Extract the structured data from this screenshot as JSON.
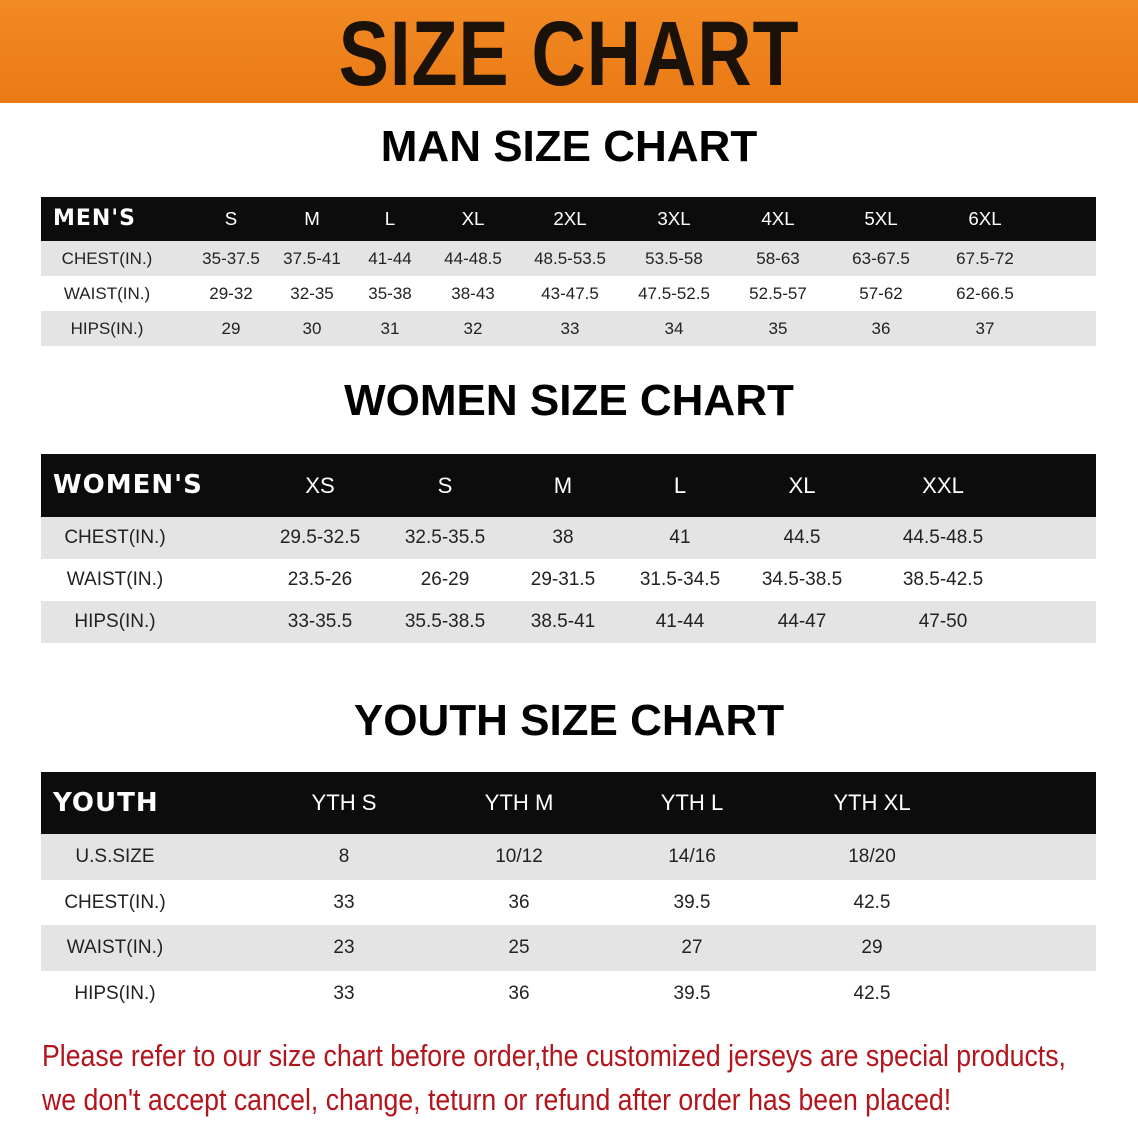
{
  "banner": {
    "title": "SIZE CHART"
  },
  "colors": {
    "banner": "#ef8420",
    "header_bg": "#0c0c0c",
    "row_alt": "#e4e4e4",
    "notice": "#b3151d"
  },
  "men": {
    "title": "MAN SIZE CHART",
    "header_label": "MEN'S",
    "sizes": [
      "S",
      "M",
      "L",
      "XL",
      "2XL",
      "3XL",
      "4XL",
      "5XL",
      "6XL"
    ],
    "rows": [
      {
        "label": "CHEST(IN.)",
        "values": [
          "35-37.5",
          "37.5-41",
          "41-44",
          "44-48.5",
          "48.5-53.5",
          "53.5-58",
          "58-63",
          "63-67.5",
          "67.5-72"
        ]
      },
      {
        "label": "WAIST(IN.)",
        "values": [
          "29-32",
          "32-35",
          "35-38",
          "38-43",
          "43-47.5",
          "47.5-52.5",
          "52.5-57",
          "57-62",
          "62-66.5"
        ]
      },
      {
        "label": "HIPS(IN.)",
        "values": [
          "29",
          "30",
          "31",
          "32",
          "33",
          "34",
          "35",
          "36",
          "37"
        ]
      }
    ]
  },
  "women": {
    "title": "WOMEN SIZE CHART",
    "header_label": "WOMEN'S",
    "sizes": [
      "XS",
      "S",
      "M",
      "L",
      "XL",
      "XXL"
    ],
    "rows": [
      {
        "label": "CHEST(IN.)",
        "values": [
          "29.5-32.5",
          "32.5-35.5",
          "38",
          "41",
          "44.5",
          "44.5-48.5"
        ]
      },
      {
        "label": "WAIST(IN.)",
        "values": [
          "23.5-26",
          "26-29",
          "29-31.5",
          "31.5-34.5",
          "34.5-38.5",
          "38.5-42.5"
        ]
      },
      {
        "label": "HIPS(IN.)",
        "values": [
          "33-35.5",
          "35.5-38.5",
          "38.5-41",
          "41-44",
          "44-47",
          "47-50"
        ]
      }
    ]
  },
  "youth": {
    "title": "YOUTH SIZE CHART",
    "header_label": "YOUTH",
    "sizes": [
      "YTH S",
      "YTH M",
      "YTH L",
      "YTH XL"
    ],
    "rows": [
      {
        "label": "U.S.SIZE",
        "values": [
          "8",
          "10/12",
          "14/16",
          "18/20"
        ]
      },
      {
        "label": "CHEST(IN.)",
        "values": [
          "33",
          "36",
          "39.5",
          "42.5"
        ]
      },
      {
        "label": "WAIST(IN.)",
        "values": [
          "23",
          "25",
          "27",
          "29"
        ]
      },
      {
        "label": "HIPS(IN.)",
        "values": [
          "33",
          "36",
          "39.5",
          "42.5"
        ]
      }
    ]
  },
  "notice": {
    "line1": "Please refer to our size chart before order,the customized jerseys are special products,",
    "line2": "we don't accept cancel, change, teturn or refund after order has been placed!"
  }
}
